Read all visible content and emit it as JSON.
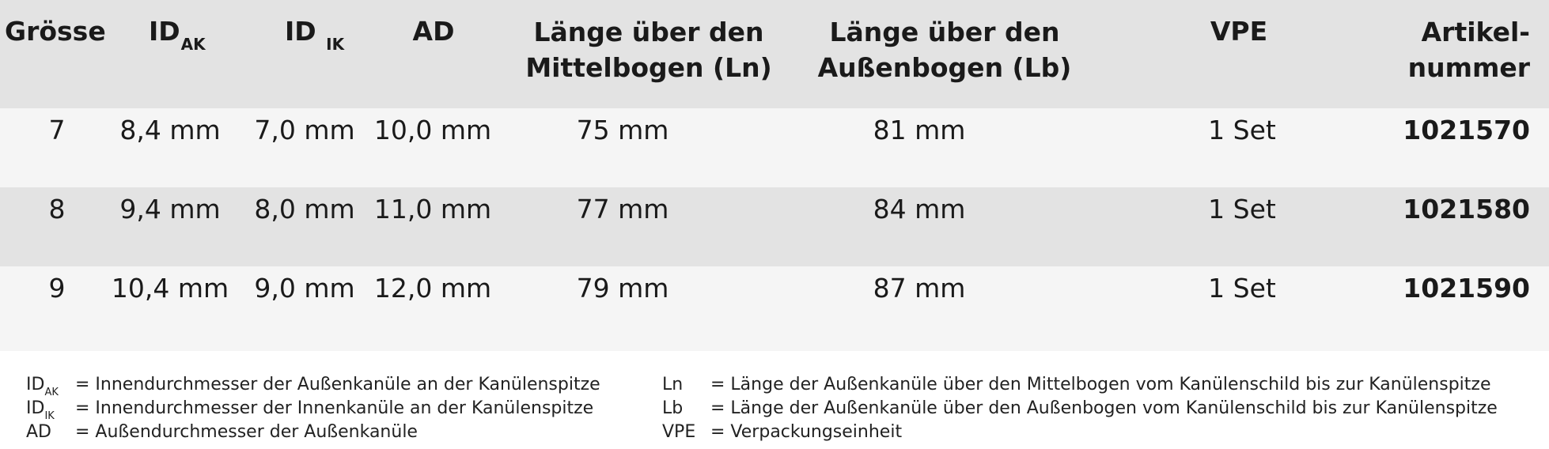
{
  "table": {
    "headers": {
      "groesse": "Grösse",
      "id_ak_main": "ID",
      "id_ak_sub": "AK",
      "id_ik_main": "ID",
      "id_ik_sub": "IK",
      "ad": "AD",
      "ln_line1": "Länge über den",
      "ln_line2": "Mittelbogen (Ln)",
      "lb_line1": "Länge über den",
      "lb_line2": "Außenbogen (Lb)",
      "vpe": "VPE",
      "artikel_line1": "Artikel-",
      "artikel_line2": "nummer"
    },
    "rows": [
      {
        "groesse": "7",
        "id_ak": "8,4 mm",
        "id_ik": "7,0 mm",
        "ad": "10,0 mm",
        "ln": "75 mm",
        "lb": "81 mm",
        "vpe": "1 Set",
        "artikel": "1021570"
      },
      {
        "groesse": "8",
        "id_ak": "9,4 mm",
        "id_ik": "8,0 mm",
        "ad": "11,0 mm",
        "ln": "77 mm",
        "lb": "84 mm",
        "vpe": "1 Set",
        "artikel": "1021580"
      },
      {
        "groesse": "9",
        "id_ak": "10,4 mm",
        "id_ik": "9,0 mm",
        "ad": "12,0 mm",
        "ln": "79 mm",
        "lb": "87 mm",
        "vpe": "1 Set",
        "artikel": "1021590"
      }
    ]
  },
  "legend": {
    "left": [
      {
        "abbr": "ID",
        "sub": "AK",
        "text": "= Innendurchmesser der Außenkanüle an der Kanülenspitze"
      },
      {
        "abbr": "ID",
        "sub": "IK",
        "text": "= Innendurchmesser der Innenkanüle an der Kanülenspitze"
      },
      {
        "abbr": "AD",
        "sub": "",
        "text": "= Außendurchmesser der Außenkanüle"
      }
    ],
    "right": [
      {
        "abbr": "Ln",
        "text": "= Länge der Außenkanüle über den Mittelbogen vom Kanülenschild bis zur Kanülenspitze"
      },
      {
        "abbr": "Lb",
        "text": "= Länge der Außenkanüle über den Außenbogen vom Kanülenschild bis zur Kanülenspitze"
      },
      {
        "abbr": "VPE",
        "text": "= Verpackungseinheit"
      }
    ]
  }
}
